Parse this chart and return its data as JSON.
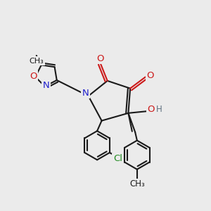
{
  "bg_color": "#ebebeb",
  "bond_color": "#1a1a1a",
  "N_color": "#2020cc",
  "O_color": "#cc1a1a",
  "Cl_color": "#228B22",
  "OH_color": "#607080",
  "lw": 1.5,
  "fs": 9.5,
  "xlim": [
    0.0,
    5.5
  ],
  "ylim": [
    0.3,
    4.5
  ]
}
